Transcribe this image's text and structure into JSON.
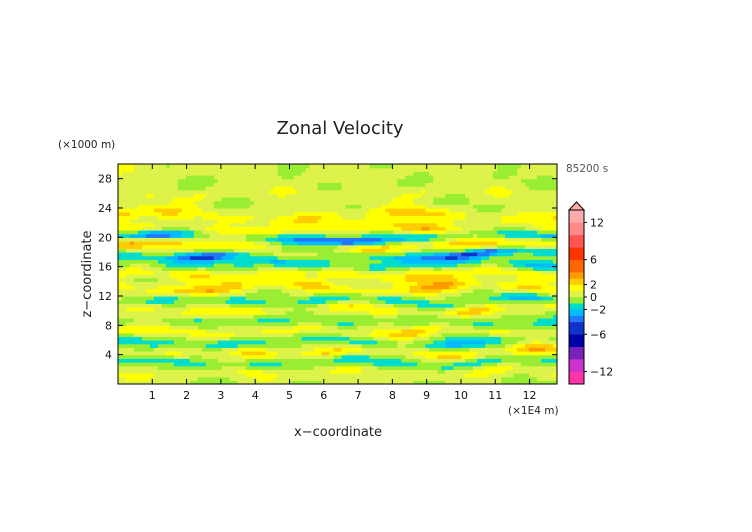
{
  "chart_data": {
    "type": "heatmap",
    "title": "Zonal Velocity",
    "xlabel": "x−coordinate",
    "ylabel": "z−coordinate",
    "x_unit": "(×1E4 m)",
    "y_unit": "(×1000 m)",
    "time_label": "85200 s",
    "xlim": [
      0,
      12.8
    ],
    "ylim": [
      0,
      30
    ],
    "x_ticks": [
      1,
      2,
      3,
      4,
      5,
      6,
      7,
      8,
      9,
      10,
      11,
      12
    ],
    "y_ticks": [
      4,
      8,
      12,
      16,
      20,
      24,
      28
    ],
    "colorbar": {
      "labels": [
        "12",
        "6",
        "2",
        "0",
        "−2",
        "−6",
        "−12"
      ],
      "label_values": [
        12,
        6,
        2,
        0,
        -2,
        -6,
        -12
      ],
      "bounds": [
        -14,
        -12,
        -10,
        -8,
        -6,
        -4,
        -3,
        -2,
        -1,
        0,
        1,
        2,
        3,
        4,
        6,
        8,
        10,
        12,
        14
      ],
      "colors": [
        "#ff33aa",
        "#cc33cc",
        "#7722bb",
        "#0000aa",
        "#1133cc",
        "#2277ff",
        "#00bbff",
        "#00ddcc",
        "#99ee33",
        "#ddf24a",
        "#ffff00",
        "#ffcc00",
        "#ff9900",
        "#ff6600",
        "#ff3300",
        "#ff5555",
        "#ff8888",
        "#ffaaaa"
      ],
      "extend": "max"
    },
    "zones": [
      {
        "z": 29.0,
        "w": 1.2,
        "a": 0.8,
        "phase": 1.2,
        "k": 0.6
      },
      {
        "z": 26.0,
        "w": 1.0,
        "a": 1.2,
        "phase": 3.0,
        "k": 1.1
      },
      {
        "z": 23.0,
        "w": 0.9,
        "a": 2.6,
        "phase": 0.5,
        "k": 0.9
      },
      {
        "z": 21.2,
        "w": 0.8,
        "a": 3.0,
        "phase": 2.1,
        "k": 0.8
      },
      {
        "z": 20.0,
        "w": 0.7,
        "a": -4.5,
        "phase": 0.0,
        "k": 0.7
      },
      {
        "z": 18.8,
        "w": 0.8,
        "a": 4.0,
        "phase": 1.4,
        "k": 0.6
      },
      {
        "z": 17.8,
        "w": 0.6,
        "a": -4.0,
        "phase": 3.3,
        "k": 0.9
      },
      {
        "z": 16.4,
        "w": 0.8,
        "a": -2.8,
        "phase": 4.2,
        "k": 1.0
      },
      {
        "z": 15.0,
        "w": 0.8,
        "a": 3.0,
        "phase": 0.9,
        "k": 1.2
      },
      {
        "z": 13.2,
        "w": 0.8,
        "a": 3.2,
        "phase": 2.6,
        "k": 1.1
      },
      {
        "z": 11.4,
        "w": 0.7,
        "a": -2.6,
        "phase": 5.0,
        "k": 1.3
      },
      {
        "z": 10.2,
        "w": 0.8,
        "a": 2.4,
        "phase": 1.8,
        "k": 1.0
      },
      {
        "z": 8.6,
        "w": 0.8,
        "a": -1.8,
        "phase": 3.9,
        "k": 1.2
      },
      {
        "z": 7.2,
        "w": 0.8,
        "a": 2.6,
        "phase": 0.3,
        "k": 1.4
      },
      {
        "z": 5.8,
        "w": 0.8,
        "a": -2.6,
        "phase": 2.2,
        "k": 1.0
      },
      {
        "z": 4.4,
        "w": 0.8,
        "a": 2.8,
        "phase": 4.4,
        "k": 1.3
      },
      {
        "z": 3.0,
        "w": 0.7,
        "a": -2.4,
        "phase": 1.0,
        "k": 1.1
      },
      {
        "z": 1.6,
        "w": 0.8,
        "a": 1.6,
        "phase": 3.4,
        "k": 1.5
      }
    ]
  }
}
